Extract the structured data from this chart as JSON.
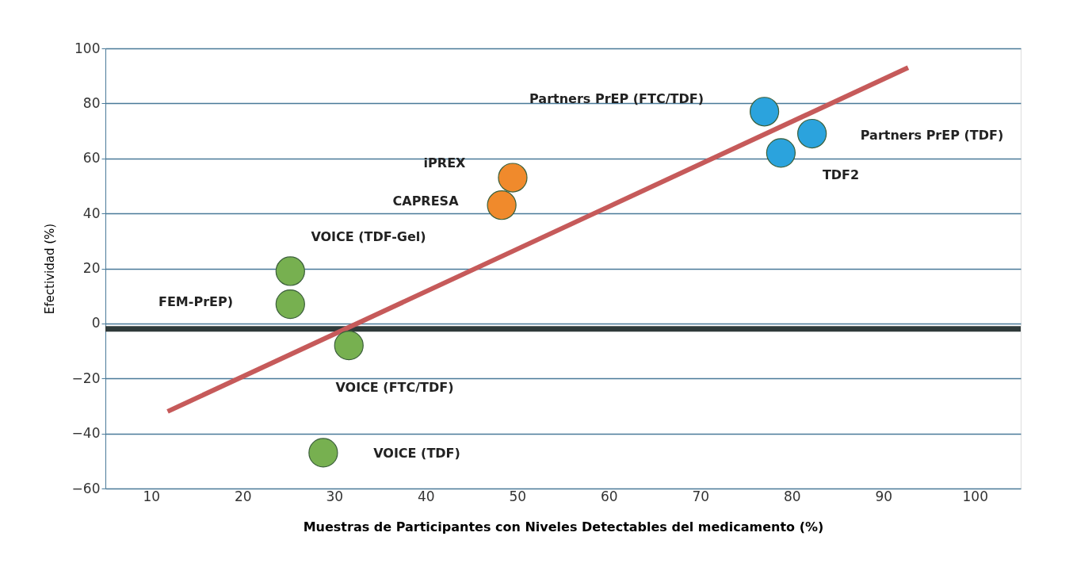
{
  "chart_data": {
    "type": "scatter",
    "xlabel": "Muestras de Participantes con Niveles Detectables del medicamento (%)",
    "ylabel": "Efectividad (%)",
    "xlim": [
      5,
      105
    ],
    "xticks": [
      10,
      20,
      30,
      40,
      50,
      60,
      70,
      80,
      90,
      100
    ],
    "ylim": [
      -60,
      100
    ],
    "yticks": [
      -60,
      -40,
      -20,
      0,
      20,
      40,
      60,
      80,
      100
    ],
    "grid": "y",
    "marker": "circle",
    "series": [
      {
        "color": "#77b050",
        "x": [
          25.2,
          25.2,
          31.6,
          28.8
        ],
        "values": [
          19,
          7,
          -8,
          -47
        ]
      },
      {
        "color": "#f08a2c",
        "x": [
          49.5,
          48.3
        ],
        "values": [
          53,
          43
        ]
      },
      {
        "color": "#2ba3dd",
        "x": [
          77,
          82.2,
          78.8
        ],
        "values": [
          77,
          69,
          62
        ]
      },
      {
        "type": "line",
        "marker": "none",
        "color": "#c65a5a",
        "x": [
          11.8,
          92.7
        ],
        "values": [
          -32,
          93
        ]
      }
    ],
    "ref_lines": [
      {
        "axis": "y",
        "value": -2,
        "color": "#2f3a3a"
      }
    ],
    "annotations": [
      "VOICE (TDF-Gel)",
      "FEM-PrEP)",
      "VOICE (FTC/TDF)",
      "VOICE (TDF)",
      "iPREX",
      "CAPRESA",
      "Partners PrEP (FTC/TDF)",
      "Partners PrEP (TDF)",
      "TDF2"
    ]
  }
}
